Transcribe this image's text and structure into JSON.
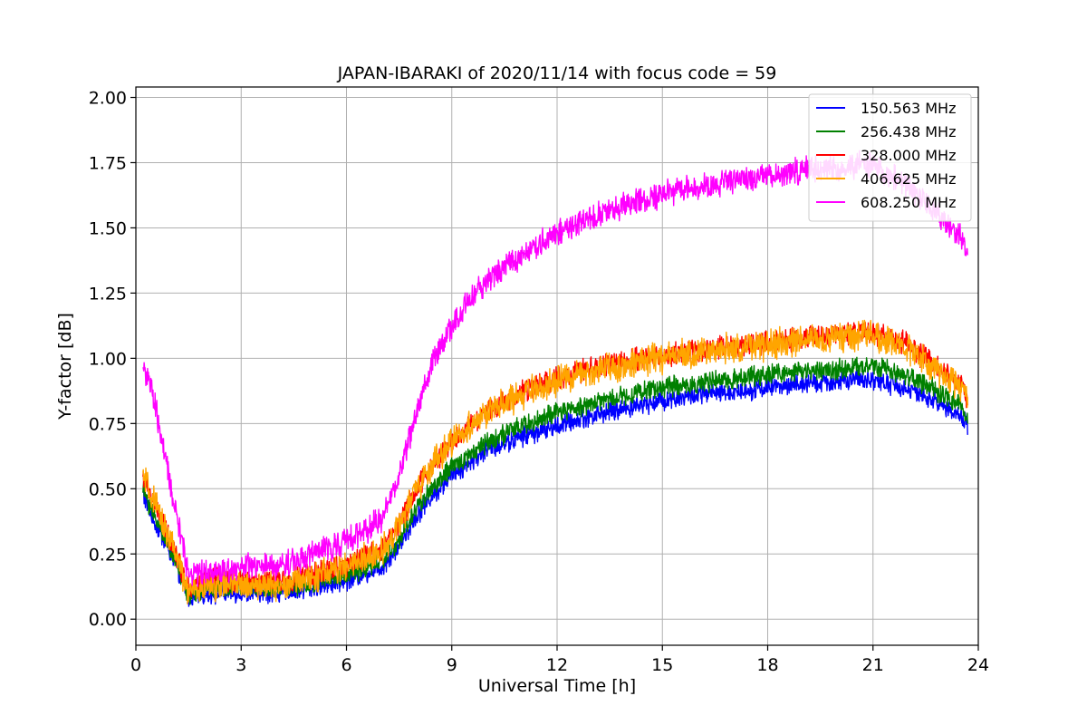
{
  "chart_data": {
    "type": "line",
    "title": "JAPAN-IBARAKI of 2020/11/14 with focus code = 59",
    "xlabel": "Universal Time [h]",
    "ylabel": "Y-factor [dB]",
    "xlim": [
      0,
      24
    ],
    "ylim": [
      -0.1,
      2.04
    ],
    "xticks": [
      "0",
      "3",
      "6",
      "9",
      "12",
      "15",
      "18",
      "21",
      "24"
    ],
    "yticks": [
      "0.00",
      "0.25",
      "0.50",
      "0.75",
      "1.00",
      "1.25",
      "1.50",
      "1.75",
      "2.00"
    ],
    "grid": true,
    "legend_position": "top-right",
    "x": [
      0.2,
      0.5,
      1.0,
      1.5,
      2.0,
      3.0,
      4.0,
      5.0,
      6.0,
      7.0,
      7.5,
      8.0,
      8.5,
      9.0,
      9.5,
      10.0,
      11.0,
      12.0,
      13.0,
      14.0,
      15.0,
      16.0,
      17.0,
      18.0,
      19.0,
      20.0,
      21.0,
      22.0,
      22.5,
      23.0,
      23.5,
      23.7
    ],
    "series": [
      {
        "name": "150.563 MHz",
        "color": "#0000ff",
        "noise": 0.03,
        "values": [
          0.48,
          0.38,
          0.25,
          0.08,
          0.1,
          0.1,
          0.1,
          0.12,
          0.15,
          0.2,
          0.28,
          0.4,
          0.48,
          0.55,
          0.6,
          0.65,
          0.7,
          0.74,
          0.78,
          0.81,
          0.84,
          0.86,
          0.87,
          0.89,
          0.9,
          0.91,
          0.92,
          0.88,
          0.85,
          0.82,
          0.78,
          0.74
        ]
      },
      {
        "name": "256.438 MHz",
        "color": "#008000",
        "noise": 0.03,
        "values": [
          0.5,
          0.4,
          0.27,
          0.09,
          0.12,
          0.12,
          0.12,
          0.14,
          0.17,
          0.22,
          0.3,
          0.43,
          0.51,
          0.58,
          0.63,
          0.68,
          0.74,
          0.79,
          0.83,
          0.86,
          0.89,
          0.9,
          0.92,
          0.94,
          0.95,
          0.96,
          0.97,
          0.93,
          0.9,
          0.86,
          0.82,
          0.78
        ]
      },
      {
        "name": "328.000 MHz",
        "color": "#ff0000",
        "noise": 0.035,
        "values": [
          0.55,
          0.45,
          0.3,
          0.12,
          0.15,
          0.15,
          0.14,
          0.17,
          0.21,
          0.27,
          0.37,
          0.5,
          0.6,
          0.68,
          0.74,
          0.8,
          0.87,
          0.92,
          0.96,
          0.99,
          1.01,
          1.03,
          1.05,
          1.06,
          1.08,
          1.09,
          1.1,
          1.05,
          1.0,
          0.95,
          0.9,
          0.85
        ]
      },
      {
        "name": "406.625 MHz",
        "color": "#ffa500",
        "noise": 0.045,
        "values": [
          0.55,
          0.45,
          0.3,
          0.1,
          0.13,
          0.13,
          0.13,
          0.16,
          0.2,
          0.26,
          0.36,
          0.5,
          0.6,
          0.68,
          0.74,
          0.79,
          0.86,
          0.91,
          0.95,
          0.98,
          1.0,
          1.02,
          1.04,
          1.05,
          1.07,
          1.08,
          1.09,
          1.04,
          0.99,
          0.94,
          0.89,
          0.84
        ]
      },
      {
        "name": "608.250 MHz",
        "color": "#ff00ff",
        "noise": 0.04,
        "values": [
          0.98,
          0.85,
          0.5,
          0.18,
          0.18,
          0.2,
          0.2,
          0.25,
          0.3,
          0.38,
          0.55,
          0.8,
          1.0,
          1.12,
          1.22,
          1.3,
          1.4,
          1.48,
          1.54,
          1.59,
          1.63,
          1.66,
          1.68,
          1.7,
          1.72,
          1.73,
          1.74,
          1.66,
          1.6,
          1.54,
          1.46,
          1.38
        ]
      }
    ]
  }
}
